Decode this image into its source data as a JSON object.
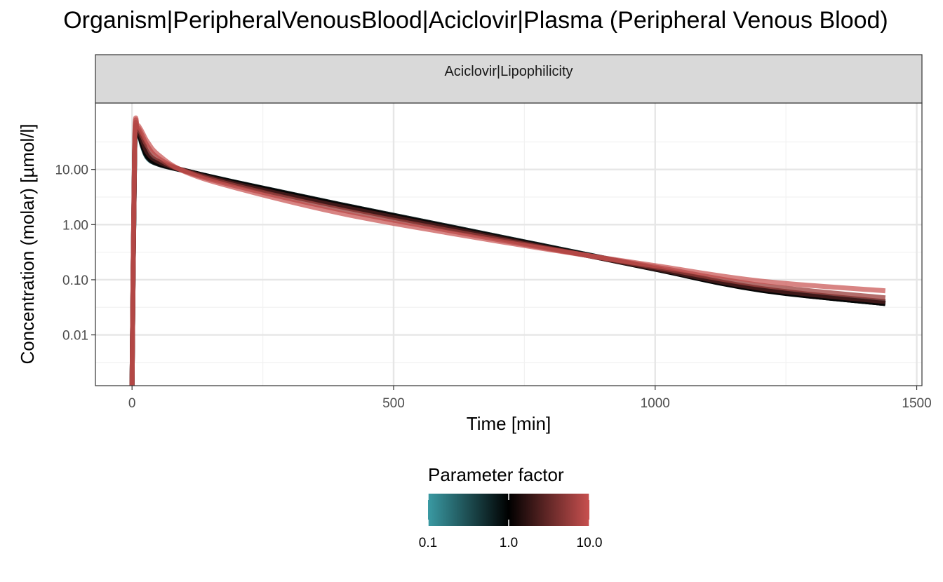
{
  "chart_data": {
    "type": "line",
    "title": "Organism|PeripheralVenousBlood|Aciclovir|Plasma (Peripheral Venous Blood)",
    "facet_label": "Aciclovir|Lipophilicity",
    "xlabel": "Time [min]",
    "ylabel": "Concentration (molar) [µmol/l]",
    "x_scale": "linear",
    "y_scale": "log10",
    "xlim": [
      -70,
      1510
    ],
    "ylim": [
      0.0012,
      160
    ],
    "x_ticks": [
      0,
      500,
      1000,
      1500
    ],
    "x_tick_labels": [
      "0",
      "500",
      "1000",
      "1500"
    ],
    "y_ticks": [
      0.01,
      0.1,
      1,
      10
    ],
    "y_tick_labels": [
      "0.01",
      "0.10",
      "1.00",
      "10.00"
    ],
    "grid": true,
    "legend": {
      "title": "Parameter factor",
      "type": "colorbar",
      "position": "bottom",
      "labels": [
        "0.1",
        "1.0",
        "10.0"
      ],
      "colors": [
        "#3a9aa3",
        "#000000",
        "#c8504f"
      ]
    },
    "series": [
      {
        "factor": 0.1,
        "color": "#2f7d84",
        "opacity": 0.9,
        "x": [
          0,
          5,
          10,
          15,
          20,
          30,
          50,
          100,
          200,
          400,
          600,
          800,
          1000,
          1200,
          1440
        ],
        "y": [
          0.0012,
          20,
          44,
          38,
          26,
          16,
          12.5,
          9.5,
          5.8,
          2.3,
          0.95,
          0.39,
          0.16,
          0.066,
          0.037
        ]
      },
      {
        "factor": 0.5,
        "color": "#1a1a1a",
        "opacity": 0.9,
        "x": [
          0,
          5,
          10,
          15,
          20,
          30,
          50,
          100,
          200,
          400,
          600,
          800,
          1000,
          1200,
          1440
        ],
        "y": [
          0.0012,
          21,
          45,
          39,
          27,
          16.5,
          12.5,
          9.5,
          5.8,
          2.3,
          0.95,
          0.39,
          0.16,
          0.066,
          0.037
        ]
      },
      {
        "factor": 1.0,
        "color": "#050505",
        "opacity": 1.0,
        "x": [
          0,
          5,
          10,
          15,
          20,
          30,
          50,
          100,
          200,
          400,
          600,
          800,
          1000,
          1200,
          1440
        ],
        "y": [
          0.0012,
          22,
          46,
          40,
          28,
          17,
          12.8,
          9.6,
          5.7,
          2.25,
          0.92,
          0.38,
          0.155,
          0.065,
          0.037
        ]
      },
      {
        "factor": 2.0,
        "color": "#4a1c1c",
        "opacity": 0.85,
        "x": [
          0,
          5,
          10,
          15,
          20,
          30,
          50,
          100,
          200,
          400,
          600,
          800,
          1000,
          1200,
          1440
        ],
        "y": [
          0.0012,
          25,
          50,
          44,
          33,
          20,
          14,
          9.5,
          5.4,
          2.1,
          0.88,
          0.37,
          0.16,
          0.07,
          0.04
        ]
      },
      {
        "factor": 5.0,
        "color": "#9a3c3a",
        "opacity": 0.75,
        "x": [
          0,
          5,
          10,
          15,
          20,
          30,
          50,
          100,
          200,
          400,
          600,
          800,
          1000,
          1200,
          1440
        ],
        "y": [
          0.0012,
          28,
          55,
          50,
          40,
          26,
          16,
          9.4,
          5.0,
          1.85,
          0.8,
          0.36,
          0.17,
          0.08,
          0.047
        ]
      },
      {
        "factor": 10.0,
        "color": "#c8504f",
        "opacity": 0.7,
        "x": [
          0,
          5,
          10,
          15,
          20,
          30,
          50,
          100,
          200,
          400,
          600,
          800,
          1000,
          1200,
          1440
        ],
        "y": [
          0.0012,
          30,
          60,
          56,
          46,
          31,
          18.5,
          9.2,
          4.6,
          1.6,
          0.72,
          0.35,
          0.18,
          0.095,
          0.063
        ]
      }
    ]
  }
}
